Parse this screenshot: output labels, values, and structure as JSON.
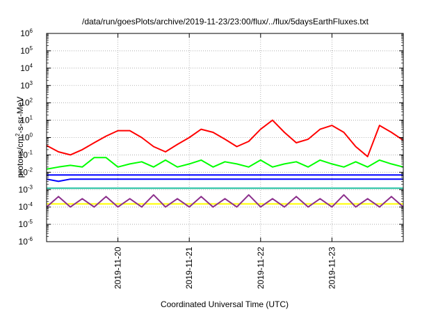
{
  "chart_data": {
    "type": "line",
    "title": "/data/run/goesPlots/archive/2019-11-23/23:00/flux/../flux/5daysEarthFluxes.txt",
    "xlabel": "Coordinated Universal Time (UTC)",
    "ylabel": {
      "base": "protons/cm",
      "exp": "2",
      "rest": "-s-sr-MeV"
    },
    "yscale": "log",
    "ylim": [
      1e-06,
      1000000.0
    ],
    "yticks": [
      {
        "base": "10",
        "exp": "-6",
        "value": 1e-06
      },
      {
        "base": "10",
        "exp": "-5",
        "value": 1e-05
      },
      {
        "base": "10",
        "exp": "-4",
        "value": 0.0001
      },
      {
        "base": "10",
        "exp": "-3",
        "value": 0.001
      },
      {
        "base": "10",
        "exp": "-2",
        "value": 0.01
      },
      {
        "base": "10",
        "exp": "-1",
        "value": 0.1
      },
      {
        "base": "10",
        "exp": "0",
        "value": 1
      },
      {
        "base": "10",
        "exp": "1",
        "value": 10
      },
      {
        "base": "10",
        "exp": "2",
        "value": 100
      },
      {
        "base": "10",
        "exp": "3",
        "value": 1000
      },
      {
        "base": "10",
        "exp": "4",
        "value": 10000
      },
      {
        "base": "10",
        "exp": "5",
        "value": 100000
      },
      {
        "base": "10",
        "exp": "6",
        "value": 1000000
      }
    ],
    "xlim": [
      "2019-11-19 00:00",
      "2019-11-24 00:00"
    ],
    "xticks": [
      {
        "label": "2019-11-20",
        "day": 1
      },
      {
        "label": "2019-11-21",
        "day": 2
      },
      {
        "label": "2019-11-22",
        "day": 3
      },
      {
        "label": "2019-11-23",
        "day": 4
      }
    ],
    "grid": true,
    "x": [
      "2019-11-19 00:00",
      "2019-11-19 04:00",
      "2019-11-19 08:00",
      "2019-11-19 12:00",
      "2019-11-19 16:00",
      "2019-11-19 20:00",
      "2019-11-20 00:00",
      "2019-11-20 04:00",
      "2019-11-20 08:00",
      "2019-11-20 12:00",
      "2019-11-20 16:00",
      "2019-11-20 20:00",
      "2019-11-21 00:00",
      "2019-11-21 04:00",
      "2019-11-21 08:00",
      "2019-11-21 12:00",
      "2019-11-21 16:00",
      "2019-11-21 20:00",
      "2019-11-22 00:00",
      "2019-11-22 04:00",
      "2019-11-22 08:00",
      "2019-11-22 12:00",
      "2019-11-22 16:00",
      "2019-11-22 20:00",
      "2019-11-23 00:00",
      "2019-11-23 04:00",
      "2019-11-23 08:00",
      "2019-11-23 12:00",
      "2019-11-23 16:00",
      "2019-11-23 20:00",
      "2019-11-24 00:00"
    ],
    "series": [
      {
        "color": "#ff0000",
        "values": [
          0.35,
          0.15,
          0.1,
          0.2,
          0.5,
          1.2,
          2.5,
          2.5,
          1.0,
          0.3,
          0.15,
          0.4,
          1.0,
          3.0,
          2.0,
          0.8,
          0.3,
          0.6,
          3.0,
          10.0,
          2.0,
          0.5,
          0.8,
          3.0,
          5.0,
          2.0,
          0.3,
          0.08,
          5.0,
          2.0,
          0.7
        ]
      },
      {
        "color": "#00ff00",
        "values": [
          0.015,
          0.02,
          0.025,
          0.02,
          0.07,
          0.07,
          0.02,
          0.03,
          0.04,
          0.02,
          0.05,
          0.02,
          0.03,
          0.05,
          0.02,
          0.04,
          0.03,
          0.02,
          0.05,
          0.02,
          0.03,
          0.04,
          0.02,
          0.05,
          0.03,
          0.02,
          0.04,
          0.02,
          0.05,
          0.03,
          0.02
        ]
      },
      {
        "color": "#0000ff",
        "values": [
          0.004,
          0.003,
          0.004,
          0.004,
          0.004,
          0.004,
          0.004,
          0.004,
          0.004,
          0.004,
          0.004,
          0.004,
          0.004,
          0.004,
          0.004,
          0.004,
          0.004,
          0.004,
          0.004,
          0.004,
          0.004,
          0.004,
          0.004,
          0.004,
          0.004,
          0.004,
          0.004,
          0.004,
          0.004,
          0.004,
          0.004
        ]
      },
      {
        "color": "#0000ff",
        "values": [
          0.007,
          0.007,
          0.007,
          0.007,
          0.007,
          0.007,
          0.007,
          0.007,
          0.007,
          0.007,
          0.007,
          0.007,
          0.007,
          0.007,
          0.007,
          0.007,
          0.007,
          0.007,
          0.007,
          0.007,
          0.007,
          0.007,
          0.007,
          0.007,
          0.007,
          0.007,
          0.007,
          0.007,
          0.007,
          0.007,
          0.007
        ]
      },
      {
        "color": "#20c0a0",
        "values": [
          0.0012,
          0.0012,
          0.0012,
          0.0012,
          0.0012,
          0.0012,
          0.0012,
          0.0012,
          0.0012,
          0.0012,
          0.0012,
          0.0012,
          0.0012,
          0.0012,
          0.0012,
          0.0012,
          0.0012,
          0.0012,
          0.0012,
          0.0012,
          0.0012,
          0.0012,
          0.0012,
          0.0012,
          0.0012,
          0.0012,
          0.0012,
          0.0012,
          0.0012,
          0.0012,
          0.0012
        ]
      },
      {
        "color": "#ffff00",
        "values": [
          0.00015,
          0.00015,
          0.00015,
          0.00015,
          0.00015,
          0.00015,
          0.00015,
          0.00015,
          0.00015,
          0.00015,
          0.00015,
          0.00015,
          0.00015,
          0.00015,
          0.00015,
          0.00015,
          0.00015,
          0.00015,
          0.00015,
          0.00015,
          0.00015,
          0.00015,
          0.00015,
          0.00015,
          0.00015,
          0.00015,
          0.00015,
          0.00015,
          0.00015,
          0.00015,
          0.00015
        ]
      },
      {
        "color": "#8b2e8b",
        "values": [
          0.0001,
          0.0004,
          0.0001,
          0.0003,
          0.0001,
          0.0004,
          0.0001,
          0.0003,
          0.0001,
          0.0005,
          0.0001,
          0.0003,
          0.0001,
          0.0004,
          0.0001,
          0.0003,
          0.0001,
          0.0005,
          0.0001,
          0.0003,
          0.0001,
          0.0004,
          0.0001,
          0.0003,
          0.0001,
          0.0005,
          0.0001,
          0.0003,
          0.0001,
          0.0004,
          0.0001
        ]
      }
    ]
  }
}
